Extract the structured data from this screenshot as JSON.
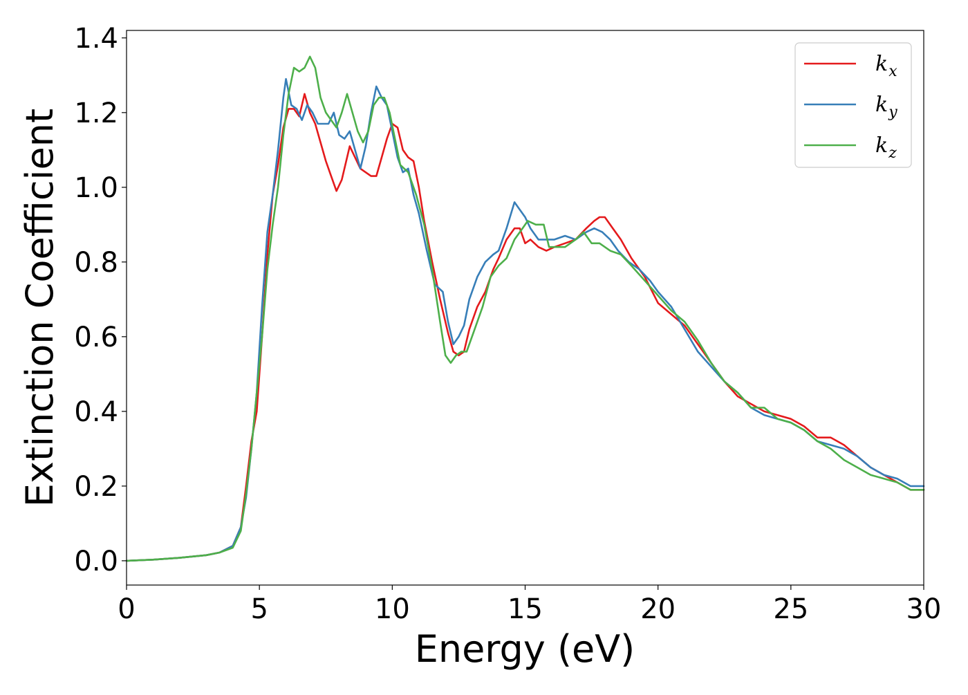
{
  "chart_data": {
    "type": "line",
    "title": "",
    "xlabel": "Energy (eV)",
    "ylabel": "Extinction Coefficient",
    "xlim": [
      0,
      30
    ],
    "ylim": [
      -0.065,
      1.42
    ],
    "xticks": [
      0,
      5,
      10,
      15,
      20,
      25,
      30
    ],
    "xtick_labels": [
      "0",
      "5",
      "10",
      "15",
      "20",
      "25",
      "30"
    ],
    "yticks": [
      0.0,
      0.2,
      0.4,
      0.6,
      0.8,
      1.0,
      1.2,
      1.4
    ],
    "ytick_labels": [
      "0.0",
      "0.2",
      "0.4",
      "0.6",
      "0.8",
      "1.0",
      "1.2",
      "1.4"
    ],
    "grid": false,
    "legend_position": "top-right",
    "series": [
      {
        "name": "k_x",
        "label_base": "k",
        "label_sub": "x",
        "color": "#e41a1c",
        "points": [
          [
            0,
            0
          ],
          [
            1,
            0.003
          ],
          [
            2,
            0.008
          ],
          [
            3,
            0.015
          ],
          [
            3.5,
            0.022
          ],
          [
            4,
            0.04
          ],
          [
            4.3,
            0.09
          ],
          [
            4.5,
            0.2
          ],
          [
            4.7,
            0.32
          ],
          [
            4.9,
            0.4
          ],
          [
            5.1,
            0.6
          ],
          [
            5.3,
            0.82
          ],
          [
            5.5,
            0.98
          ],
          [
            5.7,
            1.06
          ],
          [
            5.9,
            1.16
          ],
          [
            6.1,
            1.21
          ],
          [
            6.3,
            1.21
          ],
          [
            6.5,
            1.19
          ],
          [
            6.7,
            1.25
          ],
          [
            6.9,
            1.2
          ],
          [
            7.1,
            1.17
          ],
          [
            7.3,
            1.12
          ],
          [
            7.5,
            1.07
          ],
          [
            7.7,
            1.03
          ],
          [
            7.9,
            0.99
          ],
          [
            8.1,
            1.02
          ],
          [
            8.3,
            1.08
          ],
          [
            8.4,
            1.11
          ],
          [
            8.6,
            1.08
          ],
          [
            8.8,
            1.05
          ],
          [
            9.0,
            1.04
          ],
          [
            9.2,
            1.03
          ],
          [
            9.4,
            1.03
          ],
          [
            9.6,
            1.08
          ],
          [
            9.8,
            1.13
          ],
          [
            10.0,
            1.17
          ],
          [
            10.2,
            1.16
          ],
          [
            10.4,
            1.1
          ],
          [
            10.6,
            1.08
          ],
          [
            10.8,
            1.07
          ],
          [
            11.0,
            1.0
          ],
          [
            11.2,
            0.91
          ],
          [
            11.5,
            0.8
          ],
          [
            11.8,
            0.7
          ],
          [
            12.1,
            0.61
          ],
          [
            12.3,
            0.56
          ],
          [
            12.5,
            0.55
          ],
          [
            12.7,
            0.56
          ],
          [
            12.9,
            0.62
          ],
          [
            13.2,
            0.68
          ],
          [
            13.5,
            0.72
          ],
          [
            13.8,
            0.78
          ],
          [
            14.0,
            0.81
          ],
          [
            14.3,
            0.86
          ],
          [
            14.6,
            0.89
          ],
          [
            14.8,
            0.89
          ],
          [
            15.0,
            0.85
          ],
          [
            15.2,
            0.86
          ],
          [
            15.5,
            0.84
          ],
          [
            15.8,
            0.83
          ],
          [
            16.1,
            0.84
          ],
          [
            16.5,
            0.85
          ],
          [
            16.9,
            0.86
          ],
          [
            17.3,
            0.89
          ],
          [
            17.6,
            0.91
          ],
          [
            17.8,
            0.92
          ],
          [
            18.0,
            0.92
          ],
          [
            18.3,
            0.89
          ],
          [
            18.6,
            0.86
          ],
          [
            19.0,
            0.81
          ],
          [
            19.5,
            0.76
          ],
          [
            20.0,
            0.69
          ],
          [
            20.5,
            0.66
          ],
          [
            21.0,
            0.63
          ],
          [
            21.5,
            0.58
          ],
          [
            22.0,
            0.53
          ],
          [
            22.5,
            0.48
          ],
          [
            23.0,
            0.44
          ],
          [
            23.5,
            0.42
          ],
          [
            24.0,
            0.4
          ],
          [
            24.5,
            0.39
          ],
          [
            25.0,
            0.38
          ],
          [
            25.5,
            0.36
          ],
          [
            26.0,
            0.33
          ],
          [
            26.5,
            0.33
          ],
          [
            27.0,
            0.31
          ],
          [
            27.5,
            0.28
          ],
          [
            28.0,
            0.25
          ],
          [
            28.5,
            0.23
          ],
          [
            29.0,
            0.21
          ],
          [
            29.5,
            0.19
          ],
          [
            30.0,
            0.19
          ]
        ]
      },
      {
        "name": "k_y",
        "label_base": "k",
        "label_sub": "y",
        "color": "#377eb8",
        "points": [
          [
            0,
            0
          ],
          [
            1,
            0.003
          ],
          [
            2,
            0.008
          ],
          [
            3,
            0.015
          ],
          [
            3.5,
            0.022
          ],
          [
            4,
            0.04
          ],
          [
            4.3,
            0.09
          ],
          [
            4.5,
            0.17
          ],
          [
            4.7,
            0.3
          ],
          [
            4.9,
            0.45
          ],
          [
            5.1,
            0.68
          ],
          [
            5.3,
            0.88
          ],
          [
            5.5,
            0.98
          ],
          [
            5.7,
            1.1
          ],
          [
            5.9,
            1.24
          ],
          [
            6.0,
            1.29
          ],
          [
            6.2,
            1.22
          ],
          [
            6.4,
            1.21
          ],
          [
            6.6,
            1.18
          ],
          [
            6.8,
            1.22
          ],
          [
            7.0,
            1.2
          ],
          [
            7.2,
            1.17
          ],
          [
            7.4,
            1.17
          ],
          [
            7.6,
            1.17
          ],
          [
            7.8,
            1.2
          ],
          [
            8.0,
            1.14
          ],
          [
            8.2,
            1.13
          ],
          [
            8.4,
            1.15
          ],
          [
            8.6,
            1.1
          ],
          [
            8.8,
            1.05
          ],
          [
            9.0,
            1.11
          ],
          [
            9.2,
            1.2
          ],
          [
            9.4,
            1.27
          ],
          [
            9.6,
            1.24
          ],
          [
            9.8,
            1.22
          ],
          [
            10.0,
            1.15
          ],
          [
            10.2,
            1.08
          ],
          [
            10.4,
            1.04
          ],
          [
            10.6,
            1.05
          ],
          [
            10.8,
            0.98
          ],
          [
            11.0,
            0.93
          ],
          [
            11.3,
            0.83
          ],
          [
            11.6,
            0.74
          ],
          [
            11.9,
            0.72
          ],
          [
            12.1,
            0.64
          ],
          [
            12.3,
            0.58
          ],
          [
            12.5,
            0.6
          ],
          [
            12.7,
            0.63
          ],
          [
            12.9,
            0.7
          ],
          [
            13.2,
            0.76
          ],
          [
            13.5,
            0.8
          ],
          [
            13.8,
            0.82
          ],
          [
            14.0,
            0.83
          ],
          [
            14.3,
            0.89
          ],
          [
            14.6,
            0.96
          ],
          [
            14.8,
            0.94
          ],
          [
            15.0,
            0.92
          ],
          [
            15.2,
            0.89
          ],
          [
            15.5,
            0.86
          ],
          [
            15.8,
            0.86
          ],
          [
            16.1,
            0.86
          ],
          [
            16.5,
            0.87
          ],
          [
            16.9,
            0.86
          ],
          [
            17.3,
            0.88
          ],
          [
            17.6,
            0.89
          ],
          [
            17.9,
            0.88
          ],
          [
            18.2,
            0.86
          ],
          [
            18.5,
            0.83
          ],
          [
            18.9,
            0.8
          ],
          [
            19.3,
            0.78
          ],
          [
            19.7,
            0.75
          ],
          [
            20.0,
            0.72
          ],
          [
            20.5,
            0.68
          ],
          [
            21.0,
            0.62
          ],
          [
            21.5,
            0.56
          ],
          [
            22.0,
            0.52
          ],
          [
            22.5,
            0.48
          ],
          [
            23.0,
            0.45
          ],
          [
            23.5,
            0.41
          ],
          [
            24.0,
            0.39
          ],
          [
            24.5,
            0.38
          ],
          [
            25.0,
            0.37
          ],
          [
            25.5,
            0.35
          ],
          [
            26.0,
            0.32
          ],
          [
            26.5,
            0.31
          ],
          [
            27.0,
            0.3
          ],
          [
            27.5,
            0.28
          ],
          [
            28.0,
            0.25
          ],
          [
            28.5,
            0.23
          ],
          [
            29.0,
            0.22
          ],
          [
            29.5,
            0.2
          ],
          [
            30.0,
            0.2
          ]
        ]
      },
      {
        "name": "k_z",
        "label_base": "k",
        "label_sub": "z",
        "color": "#4daf4a",
        "points": [
          [
            0,
            0
          ],
          [
            1,
            0.003
          ],
          [
            2,
            0.008
          ],
          [
            3,
            0.015
          ],
          [
            3.5,
            0.022
          ],
          [
            4,
            0.035
          ],
          [
            4.3,
            0.08
          ],
          [
            4.5,
            0.18
          ],
          [
            4.7,
            0.3
          ],
          [
            4.9,
            0.45
          ],
          [
            5.1,
            0.6
          ],
          [
            5.3,
            0.78
          ],
          [
            5.5,
            0.9
          ],
          [
            5.7,
            1.0
          ],
          [
            5.9,
            1.14
          ],
          [
            6.1,
            1.25
          ],
          [
            6.3,
            1.32
          ],
          [
            6.5,
            1.31
          ],
          [
            6.7,
            1.32
          ],
          [
            6.9,
            1.35
          ],
          [
            7.1,
            1.32
          ],
          [
            7.3,
            1.24
          ],
          [
            7.5,
            1.2
          ],
          [
            7.7,
            1.18
          ],
          [
            7.9,
            1.16
          ],
          [
            8.1,
            1.2
          ],
          [
            8.3,
            1.25
          ],
          [
            8.5,
            1.2
          ],
          [
            8.7,
            1.15
          ],
          [
            8.9,
            1.12
          ],
          [
            9.1,
            1.15
          ],
          [
            9.3,
            1.22
          ],
          [
            9.5,
            1.24
          ],
          [
            9.7,
            1.24
          ],
          [
            9.9,
            1.2
          ],
          [
            10.1,
            1.13
          ],
          [
            10.3,
            1.06
          ],
          [
            10.6,
            1.04
          ],
          [
            10.9,
            0.98
          ],
          [
            11.2,
            0.9
          ],
          [
            11.5,
            0.78
          ],
          [
            11.8,
            0.64
          ],
          [
            12.0,
            0.55
          ],
          [
            12.2,
            0.53
          ],
          [
            12.4,
            0.55
          ],
          [
            12.6,
            0.56
          ],
          [
            12.8,
            0.56
          ],
          [
            13.1,
            0.62
          ],
          [
            13.4,
            0.68
          ],
          [
            13.7,
            0.76
          ],
          [
            14.0,
            0.79
          ],
          [
            14.3,
            0.81
          ],
          [
            14.6,
            0.86
          ],
          [
            14.9,
            0.89
          ],
          [
            15.1,
            0.91
          ],
          [
            15.4,
            0.9
          ],
          [
            15.7,
            0.9
          ],
          [
            15.9,
            0.84
          ],
          [
            16.2,
            0.84
          ],
          [
            16.5,
            0.84
          ],
          [
            16.9,
            0.86
          ],
          [
            17.2,
            0.88
          ],
          [
            17.5,
            0.85
          ],
          [
            17.8,
            0.85
          ],
          [
            18.2,
            0.83
          ],
          [
            18.6,
            0.82
          ],
          [
            19.0,
            0.79
          ],
          [
            19.5,
            0.75
          ],
          [
            20.0,
            0.71
          ],
          [
            20.5,
            0.67
          ],
          [
            21.0,
            0.64
          ],
          [
            21.5,
            0.59
          ],
          [
            22.0,
            0.53
          ],
          [
            22.5,
            0.48
          ],
          [
            23.0,
            0.45
          ],
          [
            23.5,
            0.41
          ],
          [
            24.0,
            0.41
          ],
          [
            24.5,
            0.38
          ],
          [
            25.0,
            0.37
          ],
          [
            25.5,
            0.35
          ],
          [
            26.0,
            0.32
          ],
          [
            26.5,
            0.3
          ],
          [
            27.0,
            0.27
          ],
          [
            27.5,
            0.25
          ],
          [
            28.0,
            0.23
          ],
          [
            28.5,
            0.22
          ],
          [
            29.0,
            0.21
          ],
          [
            29.5,
            0.19
          ],
          [
            30.0,
            0.19
          ]
        ]
      }
    ]
  }
}
